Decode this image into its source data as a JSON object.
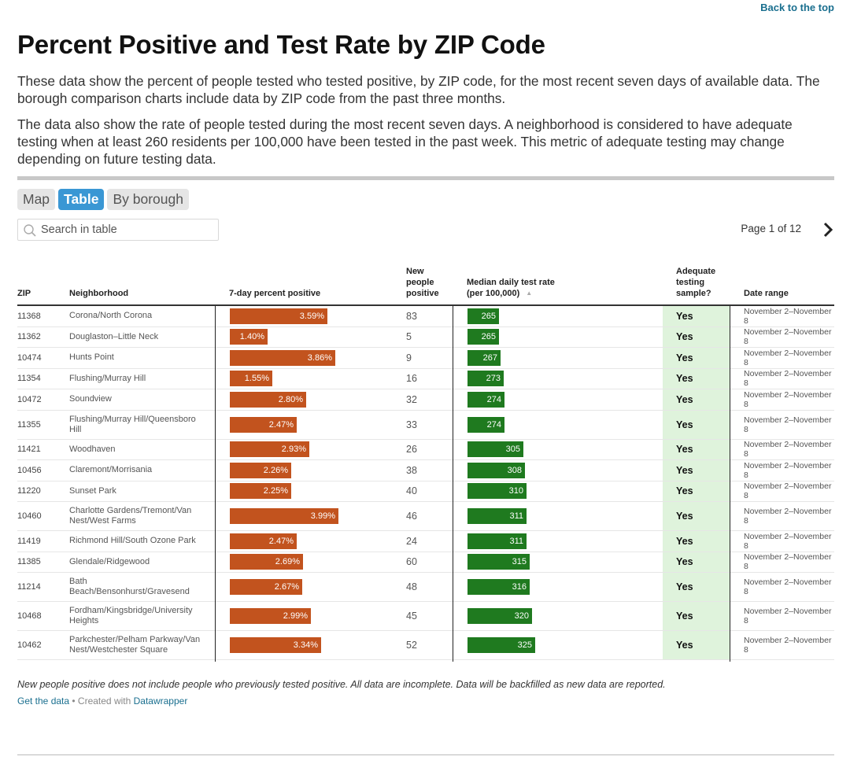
{
  "nav": {
    "back_to_top": "Back to the top"
  },
  "title": "Percent Positive and Test Rate by ZIP Code",
  "paragraphs": [
    "These data show the percent of people tested who tested positive, by ZIP code, for the most recent seven days of available data. The borough comparison charts include data by ZIP code from the past three months.",
    "The data also show the rate of people tested during the most recent seven days. A neighborhood is considered to have adequate testing when at least 260 residents per 100,000 have been tested in the past week. This metric of adequate testing may change depending on future testing data."
  ],
  "tabs": [
    {
      "label": "Map",
      "active": false
    },
    {
      "label": "Table",
      "active": true
    },
    {
      "label": "By borough",
      "active": false
    }
  ],
  "search": {
    "placeholder": "Search in table",
    "icon": "search-icon"
  },
  "pager": {
    "label": "Page 1 of 12",
    "icon": "chevron-right-icon"
  },
  "table": {
    "headers": {
      "zip": "ZIP",
      "neighborhood": "Neighborhood",
      "percent_positive": "7-day percent positive",
      "new_positive": [
        "New",
        "people",
        "positive"
      ],
      "test_rate": [
        "Median daily test rate",
        "(per 100,000)"
      ],
      "adequate": [
        "Adequate",
        "testing",
        "sample?"
      ],
      "date_range": "Date range"
    },
    "sort_icon": "sort-ascending-icon",
    "colors": {
      "percent_bar": "#c2531e",
      "rate_bar": "#1f7a1f",
      "adequate_bg": "#dff3dc"
    },
    "rows": [
      {
        "zip": "11368",
        "neighborhood": "Corona/North Corona",
        "pct": 3.59,
        "pct_label": "3.59%",
        "new": "83",
        "rate": 265,
        "rate_label": "265",
        "adequate": "Yes",
        "date": "November 2–November 8"
      },
      {
        "zip": "11362",
        "neighborhood": "Douglaston–Little Neck",
        "pct": 1.4,
        "pct_label": "1.40%",
        "new": "5",
        "rate": 265,
        "rate_label": "265",
        "adequate": "Yes",
        "date": "November 2–November 8"
      },
      {
        "zip": "10474",
        "neighborhood": "Hunts Point",
        "pct": 3.86,
        "pct_label": "3.86%",
        "new": "9",
        "rate": 267,
        "rate_label": "267",
        "adequate": "Yes",
        "date": "November 2–November 8"
      },
      {
        "zip": "11354",
        "neighborhood": "Flushing/Murray Hill",
        "pct": 1.55,
        "pct_label": "1.55%",
        "new": "16",
        "rate": 273,
        "rate_label": "273",
        "adequate": "Yes",
        "date": "November 2–November 8"
      },
      {
        "zip": "10472",
        "neighborhood": "Soundview",
        "pct": 2.8,
        "pct_label": "2.80%",
        "new": "32",
        "rate": 274,
        "rate_label": "274",
        "adequate": "Yes",
        "date": "November 2–November 8"
      },
      {
        "zip": "11355",
        "neighborhood": "Flushing/Murray Hill/Queensboro Hill",
        "pct": 2.47,
        "pct_label": "2.47%",
        "new": "33",
        "rate": 274,
        "rate_label": "274",
        "adequate": "Yes",
        "date": "November 2–November 8"
      },
      {
        "zip": "11421",
        "neighborhood": "Woodhaven",
        "pct": 2.93,
        "pct_label": "2.93%",
        "new": "26",
        "rate": 305,
        "rate_label": "305",
        "adequate": "Yes",
        "date": "November 2–November 8"
      },
      {
        "zip": "10456",
        "neighborhood": "Claremont/Morrisania",
        "pct": 2.26,
        "pct_label": "2.26%",
        "new": "38",
        "rate": 308,
        "rate_label": "308",
        "adequate": "Yes",
        "date": "November 2–November 8"
      },
      {
        "zip": "11220",
        "neighborhood": "Sunset Park",
        "pct": 2.25,
        "pct_label": "2.25%",
        "new": "40",
        "rate": 310,
        "rate_label": "310",
        "adequate": "Yes",
        "date": "November 2–November 8"
      },
      {
        "zip": "10460",
        "neighborhood": "Charlotte Gardens/Tremont/Van Nest/West Farms",
        "pct": 3.99,
        "pct_label": "3.99%",
        "new": "46",
        "rate": 311,
        "rate_label": "311",
        "adequate": "Yes",
        "date": "November 2–November 8"
      },
      {
        "zip": "11419",
        "neighborhood": "Richmond Hill/South Ozone Park",
        "pct": 2.47,
        "pct_label": "2.47%",
        "new": "24",
        "rate": 311,
        "rate_label": "311",
        "adequate": "Yes",
        "date": "November 2–November 8"
      },
      {
        "zip": "11385",
        "neighborhood": "Glendale/Ridgewood",
        "pct": 2.69,
        "pct_label": "2.69%",
        "new": "60",
        "rate": 315,
        "rate_label": "315",
        "adequate": "Yes",
        "date": "November 2–November 8"
      },
      {
        "zip": "11214",
        "neighborhood": "Bath Beach/Bensonhurst/Gravesend",
        "pct": 2.67,
        "pct_label": "2.67%",
        "new": "48",
        "rate": 316,
        "rate_label": "316",
        "adequate": "Yes",
        "date": "November 2–November 8"
      },
      {
        "zip": "10468",
        "neighborhood": "Fordham/Kingsbridge/University Heights",
        "pct": 2.99,
        "pct_label": "2.99%",
        "new": "45",
        "rate": 320,
        "rate_label": "320",
        "adequate": "Yes",
        "date": "November 2–November 8"
      },
      {
        "zip": "10462",
        "neighborhood": "Parkchester/Pelham Parkway/Van Nest/Westchester Square",
        "pct": 3.34,
        "pct_label": "3.34%",
        "new": "52",
        "rate": 325,
        "rate_label": "325",
        "adequate": "Yes",
        "date": "November 2–November 8"
      }
    ]
  },
  "footnote": "New people positive does not include people who previously tested positive. All data are incomplete. Data will be backfilled as new data are reported.",
  "credits": {
    "get_data": "Get the data",
    "separator": " • Created with ",
    "tool": "Datawrapper"
  }
}
